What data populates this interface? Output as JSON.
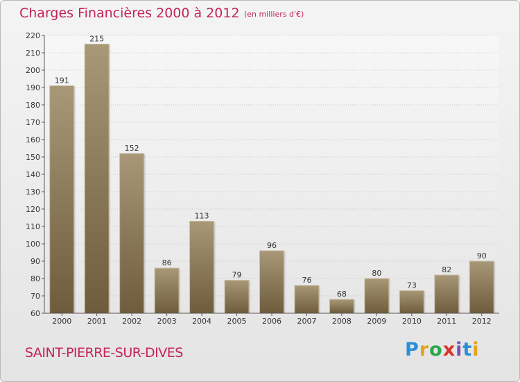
{
  "header": {
    "title": "Charges Financières 2000 à 2012",
    "subtitle": "(en milliers d'€)"
  },
  "footer": {
    "place": "SAINT-PIERRE-SUR-DIVES",
    "logo_text": "Proxiti"
  },
  "colors": {
    "accent": "#c4245a",
    "bar_light": "#a89878",
    "bar_dark": "#6e5c3c"
  },
  "chart_data": {
    "type": "bar",
    "categories": [
      "2000",
      "2001",
      "2002",
      "2003",
      "2004",
      "2005",
      "2006",
      "2007",
      "2008",
      "2009",
      "2010",
      "2011",
      "2012"
    ],
    "values": [
      191,
      215,
      152,
      86,
      113,
      79,
      96,
      76,
      68,
      80,
      73,
      82,
      90
    ],
    "title": "Charges Financières 2000 à 2012",
    "subtitle": "(en milliers d'€)",
    "xlabel": "",
    "ylabel": "",
    "ylim": [
      60,
      220
    ],
    "yticks": [
      60,
      70,
      80,
      90,
      100,
      110,
      120,
      130,
      140,
      150,
      160,
      170,
      180,
      190,
      200,
      210,
      220
    ],
    "grid": true,
    "legend": "none"
  }
}
